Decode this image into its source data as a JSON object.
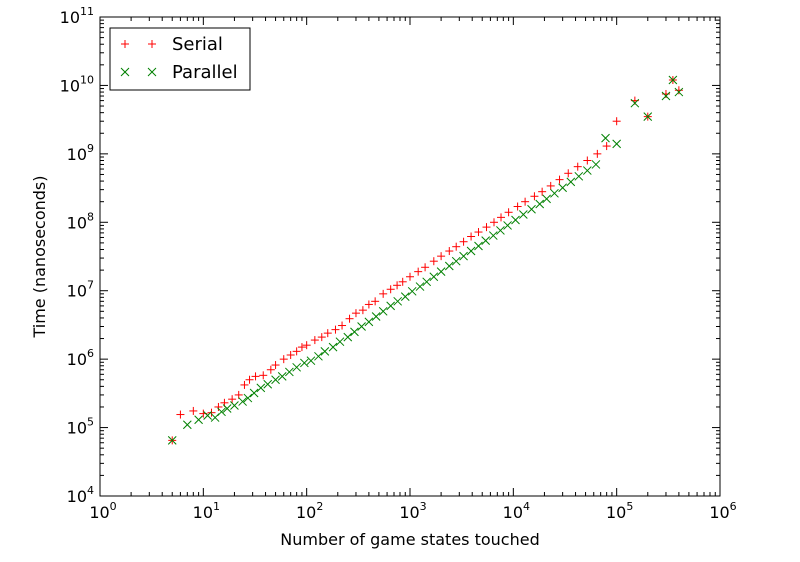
{
  "chart_data": {
    "type": "scatter",
    "xlabel": "Number of game states touched",
    "ylabel": "Time (nanoseconds)",
    "xscale": "log",
    "yscale": "log",
    "xlim": [
      1,
      1000000
    ],
    "ylim": [
      10000,
      100000000000
    ],
    "x_ticks": [
      {
        "base": "10",
        "exp": "0",
        "value": 1
      },
      {
        "base": "10",
        "exp": "1",
        "value": 10
      },
      {
        "base": "10",
        "exp": "2",
        "value": 100
      },
      {
        "base": "10",
        "exp": "3",
        "value": 1000
      },
      {
        "base": "10",
        "exp": "4",
        "value": 10000
      },
      {
        "base": "10",
        "exp": "5",
        "value": 100000
      },
      {
        "base": "10",
        "exp": "6",
        "value": 1000000
      }
    ],
    "y_ticks": [
      {
        "base": "10",
        "exp": "4",
        "value": 10000
      },
      {
        "base": "10",
        "exp": "5",
        "value": 100000
      },
      {
        "base": "10",
        "exp": "6",
        "value": 1000000
      },
      {
        "base": "10",
        "exp": "7",
        "value": 10000000
      },
      {
        "base": "10",
        "exp": "8",
        "value": 100000000
      },
      {
        "base": "10",
        "exp": "9",
        "value": 1000000000
      },
      {
        "base": "10",
        "exp": "10",
        "value": 10000000000
      },
      {
        "base": "10",
        "exp": "11",
        "value": 100000000000
      }
    ],
    "grid": false,
    "legend_position": "top-left",
    "series": [
      {
        "name": "Serial",
        "marker": "+",
        "color": "#ff0000",
        "points": [
          [
            5,
            65000
          ],
          [
            6,
            155000
          ],
          [
            8,
            175000
          ],
          [
            10,
            160000
          ],
          [
            12,
            165000
          ],
          [
            14,
            200000
          ],
          [
            16,
            230000
          ],
          [
            19,
            260000
          ],
          [
            22,
            300000
          ],
          [
            25,
            420000
          ],
          [
            28,
            500000
          ],
          [
            32,
            560000
          ],
          [
            38,
            580000
          ],
          [
            45,
            700000
          ],
          [
            50,
            820000
          ],
          [
            60,
            1000000
          ],
          [
            70,
            1150000
          ],
          [
            80,
            1300000
          ],
          [
            90,
            1500000
          ],
          [
            100,
            1600000
          ],
          [
            120,
            1900000
          ],
          [
            140,
            2100000
          ],
          [
            160,
            2400000
          ],
          [
            190,
            2700000
          ],
          [
            220,
            3100000
          ],
          [
            260,
            3900000
          ],
          [
            300,
            4700000
          ],
          [
            350,
            5200000
          ],
          [
            400,
            6300000
          ],
          [
            460,
            7000000
          ],
          [
            550,
            9000000
          ],
          [
            650,
            10500000
          ],
          [
            750,
            12000000
          ],
          [
            850,
            13500000
          ],
          [
            1000,
            16000000
          ],
          [
            1200,
            19000000
          ],
          [
            1400,
            22000000
          ],
          [
            1700,
            27000000
          ],
          [
            2000,
            32000000
          ],
          [
            2400,
            38000000
          ],
          [
            2800,
            44000000
          ],
          [
            3300,
            52000000
          ],
          [
            3900,
            62000000
          ],
          [
            4600,
            72000000
          ],
          [
            5500,
            85000000
          ],
          [
            6500,
            100000000
          ],
          [
            7600,
            118000000
          ],
          [
            9000,
            140000000
          ],
          [
            11000,
            170000000
          ],
          [
            13000,
            200000000
          ],
          [
            16000,
            240000000
          ],
          [
            19000,
            280000000
          ],
          [
            23000,
            340000000
          ],
          [
            28000,
            420000000
          ],
          [
            34000,
            520000000
          ],
          [
            42000,
            650000000
          ],
          [
            52000,
            800000000
          ],
          [
            65000,
            1000000000
          ],
          [
            80000,
            1300000000
          ],
          [
            100000,
            3000000000
          ],
          [
            150000,
            6000000000
          ],
          [
            200000,
            3500000000
          ],
          [
            300000,
            7500000000
          ],
          [
            400000,
            8500000000
          ],
          [
            350000,
            12000000000
          ]
        ]
      },
      {
        "name": "Parallel",
        "marker": "x",
        "color": "#008000",
        "points": [
          [
            5,
            65000
          ],
          [
            7,
            110000
          ],
          [
            9,
            130000
          ],
          [
            11,
            150000
          ],
          [
            13,
            140000
          ],
          [
            15,
            170000
          ],
          [
            17,
            190000
          ],
          [
            20,
            210000
          ],
          [
            24,
            240000
          ],
          [
            27,
            270000
          ],
          [
            31,
            320000
          ],
          [
            36,
            380000
          ],
          [
            42,
            430000
          ],
          [
            50,
            500000
          ],
          [
            58,
            560000
          ],
          [
            68,
            650000
          ],
          [
            80,
            760000
          ],
          [
            95,
            880000
          ],
          [
            110,
            950000
          ],
          [
            130,
            1100000
          ],
          [
            150,
            1300000
          ],
          [
            180,
            1500000
          ],
          [
            210,
            1800000
          ],
          [
            250,
            2100000
          ],
          [
            290,
            2500000
          ],
          [
            340,
            3000000
          ],
          [
            400,
            3500000
          ],
          [
            470,
            4200000
          ],
          [
            550,
            5000000
          ],
          [
            650,
            6000000
          ],
          [
            760,
            7000000
          ],
          [
            900,
            8200000
          ],
          [
            1050,
            9800000
          ],
          [
            1250,
            11500000
          ],
          [
            1450,
            13500000
          ],
          [
            1700,
            16000000
          ],
          [
            2000,
            19000000
          ],
          [
            2400,
            23000000
          ],
          [
            2800,
            27000000
          ],
          [
            3300,
            32000000
          ],
          [
            3900,
            38000000
          ],
          [
            4600,
            45000000
          ],
          [
            5400,
            54000000
          ],
          [
            6400,
            64000000
          ],
          [
            7500,
            76000000
          ],
          [
            8800,
            90000000
          ],
          [
            10500,
            108000000
          ],
          [
            12500,
            130000000
          ],
          [
            15000,
            155000000
          ],
          [
            18000,
            185000000
          ],
          [
            21000,
            220000000
          ],
          [
            25000,
            265000000
          ],
          [
            30000,
            320000000
          ],
          [
            36000,
            390000000
          ],
          [
            43000,
            470000000
          ],
          [
            52000,
            570000000
          ],
          [
            63000,
            700000000
          ],
          [
            78000,
            1700000000
          ],
          [
            100000,
            1400000000
          ],
          [
            150000,
            5500000000
          ],
          [
            200000,
            3500000000
          ],
          [
            300000,
            7000000000
          ],
          [
            350000,
            12000000000
          ],
          [
            400000,
            8000000000
          ]
        ]
      }
    ]
  }
}
